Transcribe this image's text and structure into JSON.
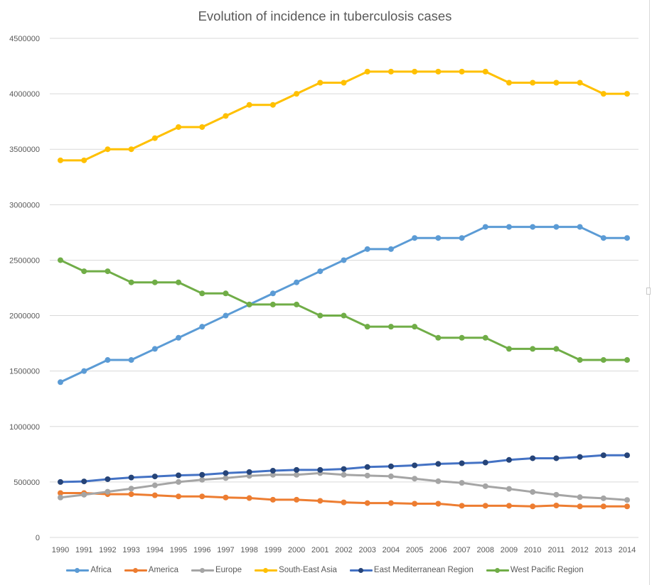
{
  "chart_data": {
    "type": "line",
    "title": "Evolution of incidence in tuberculosis cases",
    "xlabel": "",
    "ylabel": "",
    "ylim": [
      0,
      4500000
    ],
    "yticks": [
      0,
      500000,
      1000000,
      1500000,
      2000000,
      2500000,
      3000000,
      3500000,
      4000000,
      4500000
    ],
    "ytick_labels": [
      "0",
      "500000",
      "1000000",
      "1500000",
      "2000000",
      "2500000",
      "3000000",
      "3500000",
      "4000000",
      "4500000"
    ],
    "grid": true,
    "legend_position": "bottom",
    "x": [
      "1990",
      "1991",
      "1992",
      "1993",
      "1994",
      "1995",
      "1996",
      "1997",
      "1998",
      "1999",
      "2000",
      "2001",
      "2002",
      "2003",
      "2004",
      "2005",
      "2006",
      "2007",
      "2008",
      "2009",
      "2010",
      "2011",
      "2012",
      "2013",
      "2014"
    ],
    "series": [
      {
        "name": "Africa",
        "color": "#5b9bd5",
        "values": [
          1400000,
          1500000,
          1600000,
          1600000,
          1700000,
          1800000,
          1900000,
          2000000,
          2100000,
          2200000,
          2300000,
          2400000,
          2500000,
          2600000,
          2600000,
          2700000,
          2700000,
          2700000,
          2800000,
          2800000,
          2800000,
          2800000,
          2800000,
          2700000,
          2700000
        ]
      },
      {
        "name": "America",
        "color": "#ed7d31",
        "values": [
          400000,
          400000,
          390000,
          390000,
          380000,
          370000,
          370000,
          360000,
          355000,
          340000,
          340000,
          330000,
          316000,
          310000,
          310000,
          304000,
          304000,
          286000,
          286000,
          286000,
          280000,
          288000,
          280000,
          280000,
          280000
        ]
      },
      {
        "name": "Europe",
        "color": "#a5a5a5",
        "values": [
          360000,
          385000,
          412000,
          440000,
          470000,
          500000,
          520000,
          535000,
          555000,
          565000,
          565000,
          580000,
          565000,
          558000,
          551000,
          530000,
          507000,
          492000,
          462000,
          438000,
          410000,
          385000,
          363000,
          353000,
          338000
        ]
      },
      {
        "name": "South-East Asia",
        "color": "#ffc000",
        "values": [
          3400000,
          3400000,
          3500000,
          3500000,
          3600000,
          3700000,
          3700000,
          3800000,
          3900000,
          3900000,
          4000000,
          4100000,
          4100000,
          4200000,
          4200000,
          4200000,
          4200000,
          4200000,
          4200000,
          4100000,
          4100000,
          4100000,
          4100000,
          4000000,
          4000000
        ]
      },
      {
        "name": "East Mediterranean Region",
        "color": "#264478",
        "line_color": "#4472c4",
        "values": [
          500000,
          505000,
          525000,
          540000,
          550000,
          560000,
          565000,
          580000,
          590000,
          602000,
          609000,
          609000,
          617000,
          635000,
          641000,
          650000,
          663000,
          669000,
          675000,
          699000,
          714000,
          714000,
          726000,
          741000,
          741000
        ]
      },
      {
        "name": "West Pacific Region",
        "color": "#70ad47",
        "values": [
          2500000,
          2400000,
          2400000,
          2300000,
          2300000,
          2300000,
          2200000,
          2200000,
          2100000,
          2100000,
          2100000,
          2000000,
          2000000,
          1900000,
          1900000,
          1900000,
          1800000,
          1800000,
          1800000,
          1700000,
          1700000,
          1700000,
          1600000,
          1600000,
          1600000
        ]
      }
    ]
  }
}
